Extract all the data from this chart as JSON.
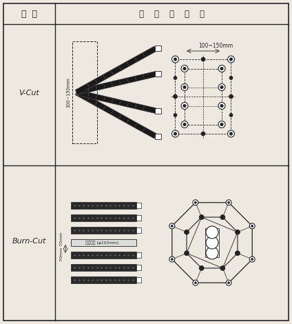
{
  "col1_header": "구  분",
  "col2_header": "청    공    및    장    약",
  "row1_label": "V-Cut",
  "row2_label": "Burn-Cut",
  "vcut_side_annotation": "100~150mm",
  "vcut_top_annotation": "100~150mm",
  "burncut_annotation": "70mm 70mm",
  "burncut_hole_annotation": "무장약공 (φ102mm)",
  "bg_color": "#ede9e0",
  "line_color": "#222222"
}
